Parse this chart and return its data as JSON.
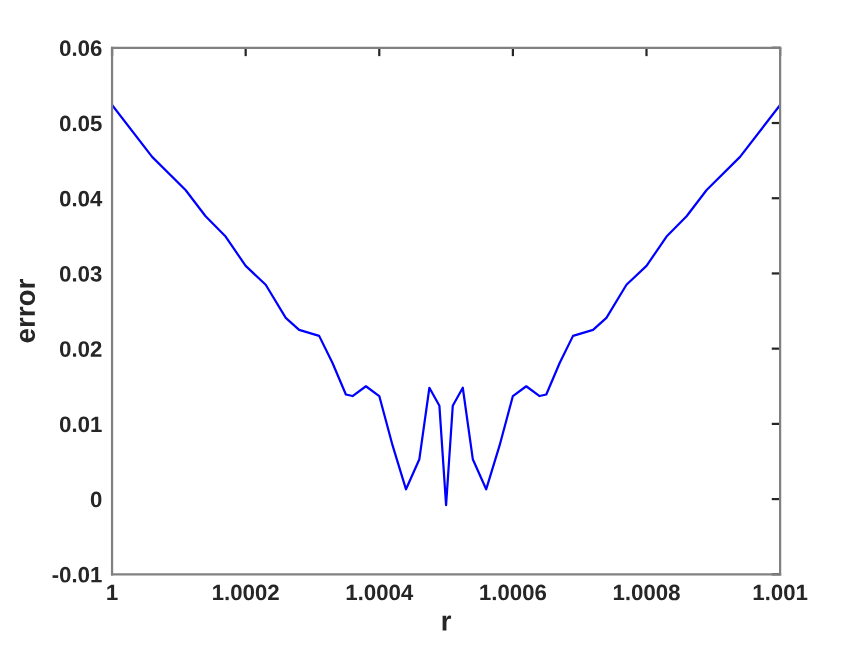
{
  "chart_data": {
    "type": "line",
    "xlabel": "r",
    "ylabel": "error",
    "x": [
      1,
      1.00006,
      1.00011,
      1.00014,
      1.00017,
      1.0002,
      1.00023,
      1.00026,
      1.00028,
      1.00031,
      1.00033,
      1.00035,
      1.00036,
      1.00038,
      1.0004,
      1.00042,
      1.00044,
      1.00046,
      1.000475,
      1.00049,
      1.0005,
      1.00051,
      1.000525,
      1.00054,
      1.00056,
      1.00058,
      1.0006,
      1.00062,
      1.00064,
      1.00065,
      1.00067,
      1.00069,
      1.00072,
      1.00074,
      1.00077,
      1.0008,
      1.00083,
      1.00086,
      1.00089,
      1.00094,
      1.001
    ],
    "series": [
      {
        "color": "#0000ff",
        "values": [
          0.0524,
          0.0455,
          0.0411,
          0.0376,
          0.0349,
          0.031,
          0.0285,
          0.0241,
          0.0225,
          0.0217,
          0.0181,
          0.0139,
          0.0137,
          0.015,
          0.0137,
          0.0071,
          0.0013,
          0.0053,
          0.0148,
          0.0124,
          -0.0008,
          0.0124,
          0.0148,
          0.0053,
          0.0013,
          0.0071,
          0.0137,
          0.015,
          0.0137,
          0.0139,
          0.0181,
          0.0217,
          0.0225,
          0.0241,
          0.0285,
          0.031,
          0.0349,
          0.0376,
          0.0411,
          0.0455,
          0.0524
        ]
      }
    ],
    "xlim": [
      1,
      1.001
    ],
    "ylim": [
      -0.01,
      0.06
    ],
    "xticks": [
      1,
      1.0002,
      1.0004,
      1.0006,
      1.0008,
      1.001
    ],
    "yticks": [
      -0.01,
      0,
      0.01,
      0.02,
      0.03,
      0.04,
      0.05,
      0.06
    ],
    "grid": false,
    "legend": false,
    "marker": "none",
    "line_style": "solid"
  }
}
